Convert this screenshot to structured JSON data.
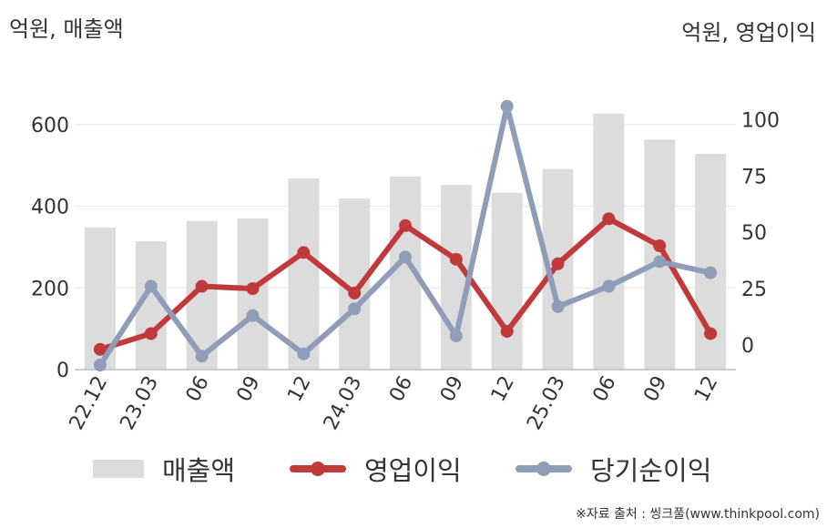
{
  "header": {
    "left_unit": "억원, 매출액",
    "right_unit": "억원, 영업이익"
  },
  "legend": {
    "revenue": "매출액",
    "operating_profit": "영업이익",
    "net_income": "당기순이익"
  },
  "source": "※자료 출처 : 씽크풀(www.thinkpool.com)",
  "colors": {
    "revenue": "#dcdcdc",
    "operating_profit": "#c0393b",
    "net_income": "#8f9db8",
    "axis": "#bbbbbb",
    "grid": "#e6e6e6",
    "text": "#333333"
  },
  "chart_data": {
    "type": "bar+line",
    "categories": [
      "22.12",
      "23.03",
      "06",
      "09",
      "12",
      "24.03",
      "06",
      "09",
      "12",
      "25.03",
      "06",
      "09",
      "12"
    ],
    "series": [
      {
        "name": "매출액",
        "type": "bar",
        "axis": "left",
        "values": [
          348,
          314,
          364,
          370,
          468,
          419,
          473,
          452,
          433,
          491,
          627,
          563,
          528
        ]
      },
      {
        "name": "영업이익",
        "type": "line",
        "axis": "right",
        "values": [
          -2,
          5,
          26,
          25,
          41,
          23,
          53,
          38,
          6,
          36,
          56,
          44,
          5
        ]
      },
      {
        "name": "당기순이익",
        "type": "line",
        "axis": "right",
        "values": [
          -9,
          26,
          -5,
          13,
          -4,
          16,
          39,
          4,
          106,
          17,
          26,
          37,
          32
        ]
      }
    ],
    "left_axis": {
      "ticks": [
        0,
        200,
        400,
        600
      ],
      "range": [
        0,
        700
      ]
    },
    "right_axis": {
      "ticks": [
        0,
        25,
        50,
        75,
        100
      ],
      "range": [
        -11,
        116
      ]
    },
    "grid": true,
    "legend_position": "bottom"
  }
}
